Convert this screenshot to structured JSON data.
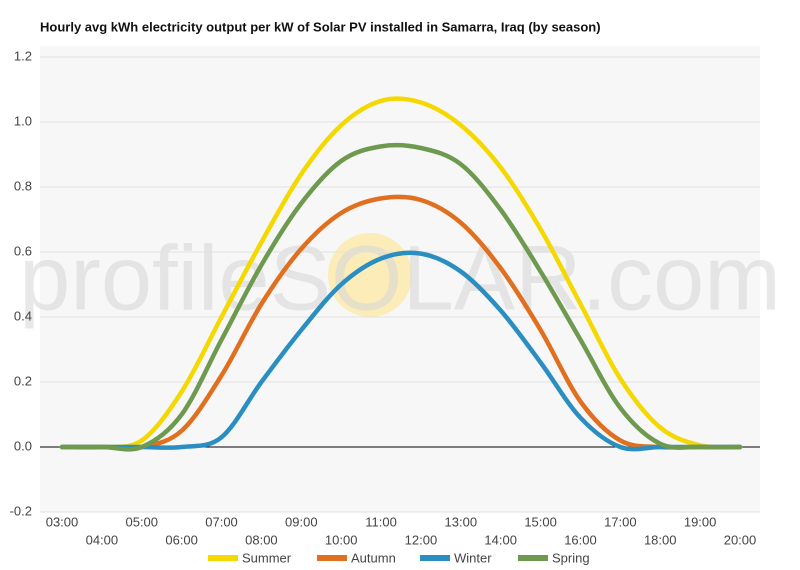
{
  "chart_data": {
    "type": "line",
    "title": "Hourly avg kWh electricity output per kW of Solar PV installed in Samarra, Iraq (by season)",
    "watermark": "profileSOLAR.com",
    "categories": [
      "03:00",
      "04:00",
      "05:00",
      "06:00",
      "07:00",
      "08:00",
      "09:00",
      "10:00",
      "11:00",
      "12:00",
      "13:00",
      "14:00",
      "15:00",
      "16:00",
      "17:00",
      "18:00",
      "19:00",
      "20:00"
    ],
    "series": [
      {
        "name": "Summer",
        "color": "#f5d800",
        "values": [
          0,
          0,
          0.02,
          0.17,
          0.4,
          0.63,
          0.84,
          0.99,
          1.065,
          1.06,
          0.99,
          0.86,
          0.67,
          0.44,
          0.21,
          0.06,
          0.005,
          0
        ]
      },
      {
        "name": "Autumn",
        "color": "#e07020",
        "values": [
          0,
          0,
          0,
          0.05,
          0.22,
          0.44,
          0.61,
          0.72,
          0.765,
          0.76,
          0.69,
          0.55,
          0.36,
          0.14,
          0.02,
          0,
          0,
          0
        ]
      },
      {
        "name": "Winter",
        "color": "#2a8fc0",
        "values": [
          0,
          0,
          0,
          0,
          0.03,
          0.2,
          0.36,
          0.5,
          0.58,
          0.595,
          0.54,
          0.42,
          0.26,
          0.09,
          0,
          0,
          0,
          0
        ]
      },
      {
        "name": "Spring",
        "color": "#6e9a50",
        "values": [
          0,
          0,
          0,
          0.1,
          0.33,
          0.56,
          0.75,
          0.88,
          0.925,
          0.92,
          0.87,
          0.73,
          0.54,
          0.33,
          0.12,
          0.01,
          0,
          0
        ]
      }
    ],
    "ylim": [
      -0.2,
      1.2
    ],
    "yticks": [
      -0.2,
      {
        "value": 0,
        "label": "0.0"
      },
      0.2,
      0.4,
      0.6,
      0.8,
      {
        "value": 1,
        "label": "1.0"
      },
      1.2
    ],
    "grid": true
  }
}
